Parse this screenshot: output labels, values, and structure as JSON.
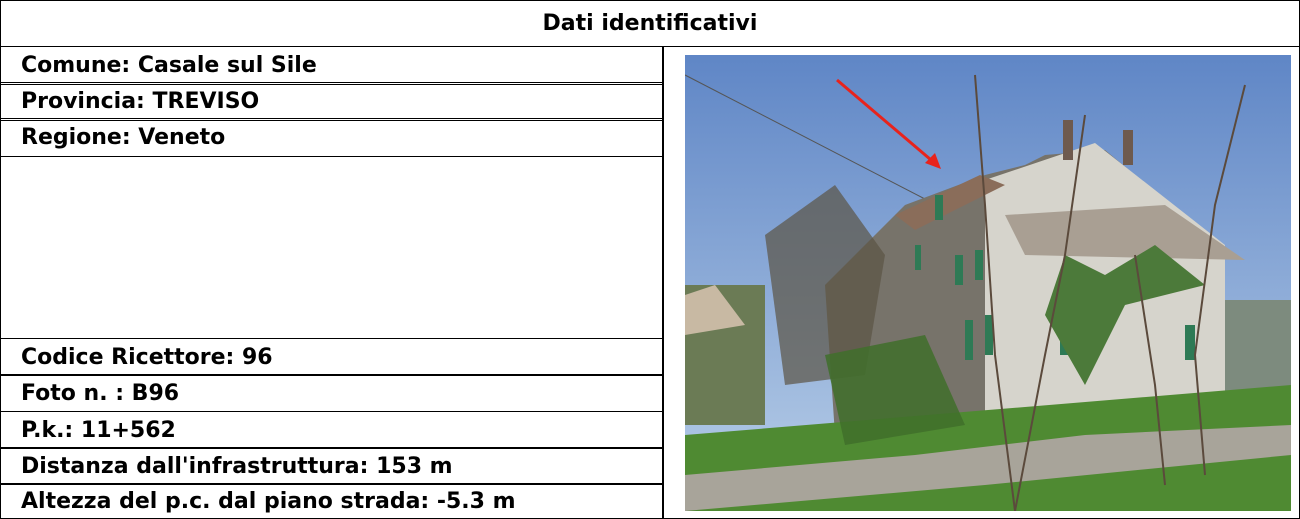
{
  "header": {
    "title": "Dati identificativi"
  },
  "rows_top": [
    "Comune: Casale sul Sile",
    "Provincia: TREVISO",
    "Regione: Veneto"
  ],
  "rows_bottom": [
    "Codice Ricettore: 96",
    "Foto n. : B96",
    "P.k.: 11+562",
    "Distanza dall'infrastruttura: 153 m",
    "Altezza del p.c. dal piano strada: -5.3 m"
  ]
}
